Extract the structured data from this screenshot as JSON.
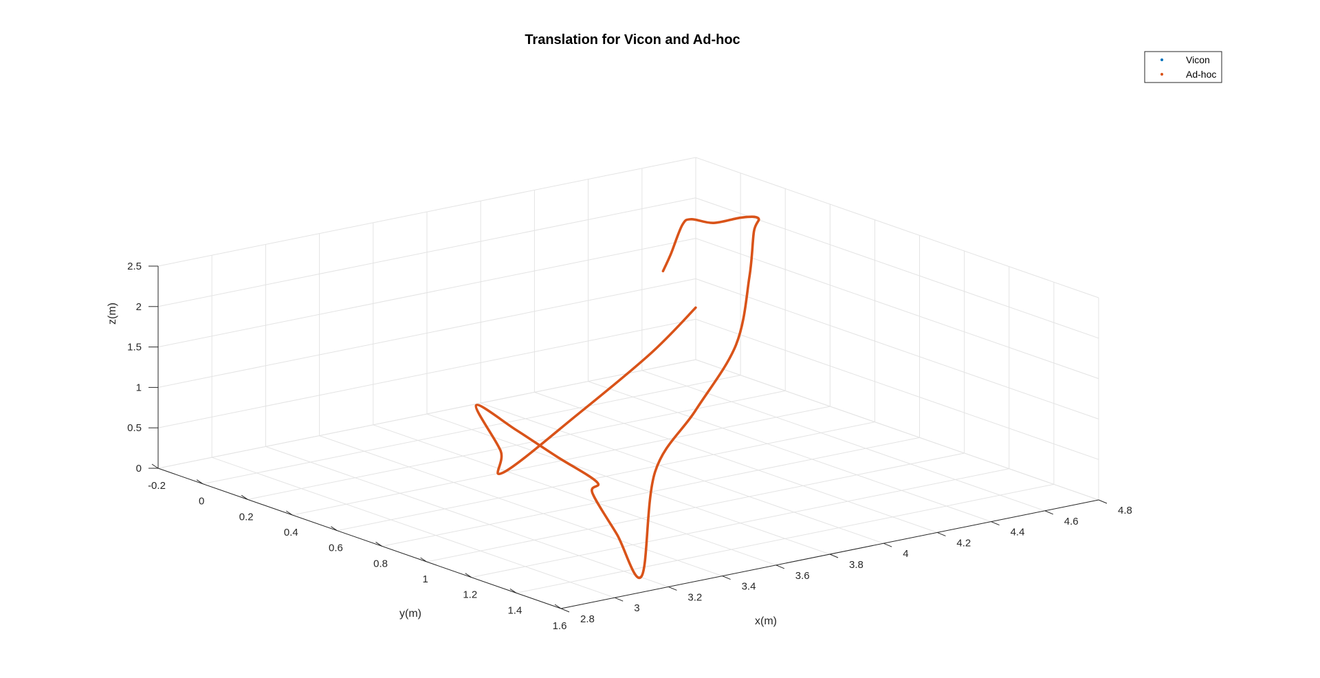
{
  "chart_data": {
    "type": "line3d",
    "title": "Translation for Vicon and Ad-hoc",
    "xlabel": "x(m)",
    "ylabel": "y(m)",
    "zlabel": "z(m)",
    "xlim": [
      -0.2,
      1.6
    ],
    "ylim": [
      2.8,
      4.8
    ],
    "zlim": [
      0,
      2.5
    ],
    "xticks": [
      "-0.2",
      "0",
      "0.2",
      "0.4",
      "0.6",
      "0.8",
      "1",
      "1.2",
      "1.4",
      "1.6"
    ],
    "yticks": [
      "2.8",
      "3",
      "3.2",
      "3.4",
      "3.6",
      "3.8",
      "4",
      "4.2",
      "4.4",
      "4.6",
      "4.8"
    ],
    "zticks": [
      "0",
      "0.5",
      "1",
      "1.5",
      "2",
      "2.5"
    ],
    "grid": true,
    "legend_position": "top-right",
    "series": [
      {
        "name": "Vicon",
        "color": "#0072BD",
        "points": [
          [
            0.1,
            4.55,
            1.1
          ],
          [
            0.2,
            4.3,
            0.8
          ],
          [
            0.35,
            3.9,
            0.45
          ],
          [
            0.5,
            3.5,
            0.15
          ],
          [
            0.55,
            3.45,
            0.5
          ],
          [
            0.5,
            3.4,
            1.05
          ],
          [
            0.8,
            3.3,
            1.1
          ],
          [
            1.1,
            3.2,
            1.13
          ],
          [
            1.4,
            3.1,
            1.17
          ],
          [
            1.5,
            3.0,
            1.2
          ],
          [
            1.55,
            3.05,
            0.7
          ],
          [
            1.6,
            3.1,
            0.2
          ],
          [
            1.3,
            3.4,
            1.0
          ],
          [
            1.0,
            3.8,
            1.2
          ],
          [
            0.7,
            4.2,
            1.45
          ],
          [
            0.4,
            4.5,
            1.8
          ],
          [
            0.3,
            4.6,
            2.2
          ],
          [
            0.2,
            4.7,
            2.2
          ],
          [
            0.1,
            4.72,
            2.1
          ],
          [
            0.0,
            4.7,
            1.95
          ],
          [
            -0.1,
            4.7,
            1.9
          ],
          [
            -0.2,
            4.75,
            1.7
          ],
          [
            -0.25,
            4.75,
            1.3
          ],
          [
            -0.25,
            4.72,
            1.1
          ]
        ]
      },
      {
        "name": "Ad-hoc",
        "color": "#D95319",
        "points": [
          [
            0.1,
            4.55,
            1.1
          ],
          [
            0.2,
            4.3,
            0.8
          ],
          [
            0.35,
            3.9,
            0.45
          ],
          [
            0.5,
            3.5,
            0.15
          ],
          [
            0.55,
            3.45,
            0.5
          ],
          [
            0.5,
            3.4,
            1.05
          ],
          [
            0.8,
            3.3,
            1.1
          ],
          [
            1.1,
            3.2,
            1.13
          ],
          [
            1.4,
            3.1,
            1.17
          ],
          [
            1.5,
            3.0,
            1.2
          ],
          [
            1.55,
            3.05,
            0.7
          ],
          [
            1.6,
            3.1,
            0.2
          ],
          [
            1.3,
            3.4,
            1.0
          ],
          [
            1.0,
            3.8,
            1.2
          ],
          [
            0.7,
            4.2,
            1.45
          ],
          [
            0.4,
            4.5,
            1.8
          ],
          [
            0.3,
            4.6,
            2.2
          ],
          [
            0.2,
            4.7,
            2.2
          ],
          [
            0.1,
            4.72,
            2.1
          ],
          [
            0.0,
            4.7,
            1.95
          ],
          [
            -0.1,
            4.7,
            1.9
          ],
          [
            -0.2,
            4.75,
            1.7
          ],
          [
            -0.25,
            4.75,
            1.3
          ],
          [
            -0.25,
            4.72,
            1.1
          ]
        ]
      }
    ]
  }
}
